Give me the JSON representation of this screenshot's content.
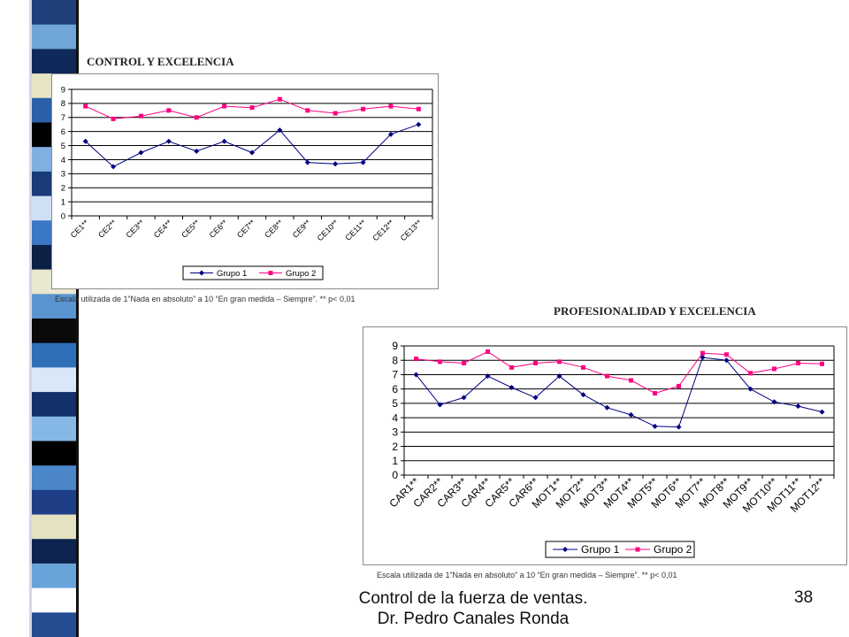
{
  "colors": {
    "grupo1": "#000080",
    "grupo2": "#ff0080",
    "grid": "#000000"
  },
  "decoration": {
    "stripe_colors": [
      "#1f3f7a",
      "#6fa6d6",
      "#0f2a5a",
      "#e6e4c4",
      "#2b5fa8",
      "#000000",
      "#7fb0e0",
      "#1a3a78",
      "#cfe0f5",
      "#3a78c6",
      "#0c1f45",
      "#e9e8d0",
      "#5b94d0",
      "#0a0a0a",
      "#2f6fb8",
      "#d8e8f8",
      "#14306a",
      "#86b8e6",
      "#000000",
      "#4a86c8",
      "#1e3e86",
      "#e4e2c0",
      "#0e2450",
      "#6aa2da",
      "#ffffff",
      "#244d92"
    ]
  },
  "chart_data": [
    {
      "type": "line",
      "title": "CONTROL Y EXCELENCIA",
      "categories": [
        "CE1**",
        "CE2**",
        "CE3**",
        "CE4**",
        "CE5**",
        "CE6**",
        "CE7**",
        "CE8**",
        "CE9**",
        "CE10**",
        "CE11**",
        "CE12**",
        "CE13**"
      ],
      "series": [
        {
          "name": "Grupo 1",
          "values": [
            5.3,
            3.5,
            4.5,
            5.3,
            4.6,
            5.3,
            4.5,
            6.1,
            3.8,
            3.7,
            3.8,
            5.8,
            6.5
          ]
        },
        {
          "name": "Grupo 2",
          "values": [
            7.8,
            6.9,
            7.1,
            7.5,
            7.0,
            7.8,
            7.7,
            8.3,
            7.5,
            7.3,
            7.6,
            7.8,
            7.6
          ]
        }
      ],
      "yticks": [
        "0",
        "1",
        "2",
        "3",
        "4",
        "5",
        "6",
        "7",
        "8",
        "9"
      ],
      "ylim": [
        0,
        9
      ],
      "grid": true,
      "legend": "bottom",
      "note": "Escala utilizada de 1”Nada en absoluto” a 10 “En gran medida – Siempre”. ** p< 0,01"
    },
    {
      "type": "line",
      "title": "PROFESIONALIDAD Y EXCELENCIA",
      "categories": [
        "CAR1**",
        "CAR2**",
        "CAR3**",
        "CAR4**",
        "CAR5**",
        "CAR6**",
        "MOT1**",
        "MOT2**",
        "MOT3**",
        "MOT4**",
        "MOT5**",
        "MOT6**",
        "MOT7**",
        "MOT8**",
        "MOT9**",
        "MOT10**",
        "MOT11**",
        "MOT12**"
      ],
      "series": [
        {
          "name": "Grupo 1",
          "values": [
            7.0,
            4.9,
            5.4,
            6.9,
            6.1,
            5.4,
            6.9,
            5.6,
            4.7,
            4.2,
            3.4,
            3.35,
            8.2,
            8.0,
            6.0,
            5.1,
            4.8,
            4.4
          ]
        },
        {
          "name": "Grupo 2",
          "values": [
            8.1,
            7.9,
            7.8,
            8.6,
            7.5,
            7.8,
            7.9,
            7.5,
            6.9,
            6.6,
            5.7,
            6.2,
            8.5,
            8.4,
            7.1,
            7.4,
            7.8,
            7.75
          ]
        }
      ],
      "yticks": [
        "0",
        "1",
        "2",
        "3",
        "4",
        "5",
        "6",
        "7",
        "8",
        "9"
      ],
      "ylim": [
        0,
        9
      ],
      "grid": true,
      "legend": "bottom",
      "note": "Escala utilizada de 1”Nada en absoluto” a 10 “En gran medida – Siempre”. ** p< 0,01"
    }
  ],
  "footer": {
    "line1": "Control de la fuerza de ventas.",
    "line2": "Dr. Pedro Canales Ronda"
  },
  "slide_number": "38"
}
